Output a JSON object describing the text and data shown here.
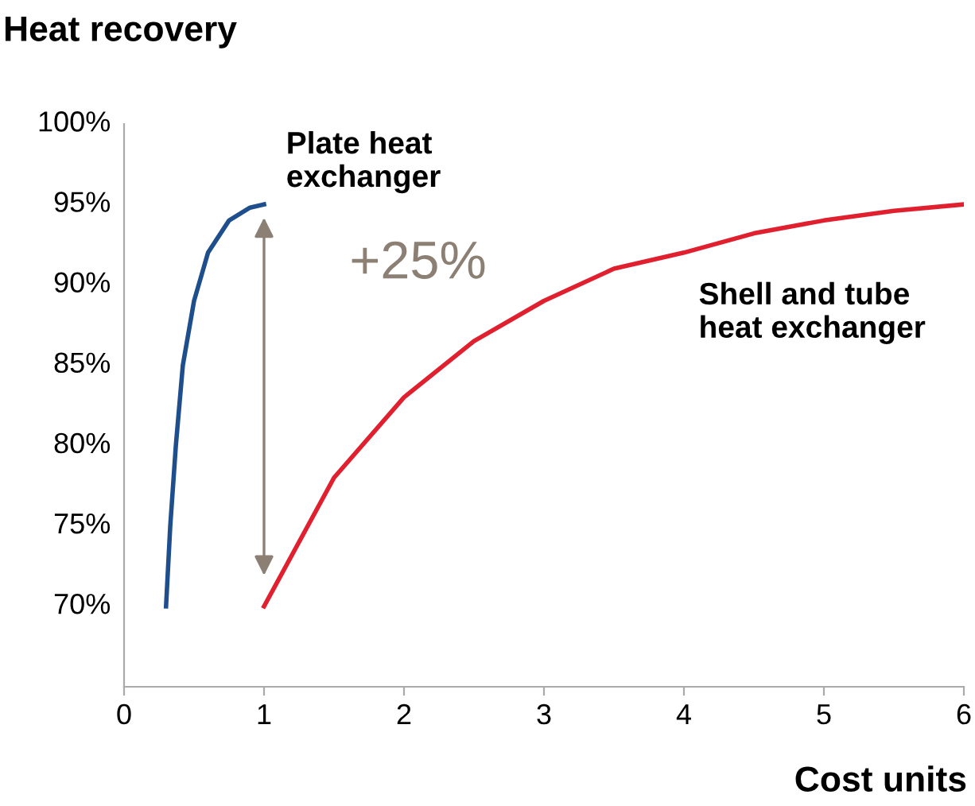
{
  "chart_data": {
    "type": "line",
    "ylabel": "Heat recovery",
    "xlabel": "Cost units",
    "xlim": [
      0,
      6
    ],
    "xticks": [
      0,
      1,
      2,
      3,
      4,
      5,
      6
    ],
    "ylim": [
      65,
      100
    ],
    "yticks": [
      {
        "value": 70,
        "label": "70%"
      },
      {
        "value": 75,
        "label": "75%"
      },
      {
        "value": 80,
        "label": "80%"
      },
      {
        "value": 85,
        "label": "85%"
      },
      {
        "value": 90,
        "label": "90%"
      },
      {
        "value": 95,
        "label": "95%"
      },
      {
        "value": 100,
        "label": "100%"
      }
    ],
    "grid": false,
    "legend": false,
    "marker": "none",
    "line_style": "solid",
    "series": [
      {
        "name": "Plate heat\nexchanger",
        "color": "#1f4e8c",
        "x": [
          0.3,
          0.33,
          0.37,
          0.42,
          0.5,
          0.6,
          0.75,
          0.9,
          1
        ],
        "values": [
          70,
          75,
          80,
          85,
          89,
          92,
          94,
          94.8,
          95
        ]
      },
      {
        "name": "Shell and tube\nheat exchanger",
        "color": "#e0202e",
        "x": [
          1,
          1.5,
          2,
          2.5,
          3,
          3.5,
          4,
          4.5,
          5,
          5.5,
          6
        ],
        "values": [
          70,
          78,
          83,
          86.5,
          89,
          91,
          92,
          93.2,
          94,
          94.6,
          95
        ]
      }
    ],
    "annotations": [
      "+25%"
    ]
  }
}
